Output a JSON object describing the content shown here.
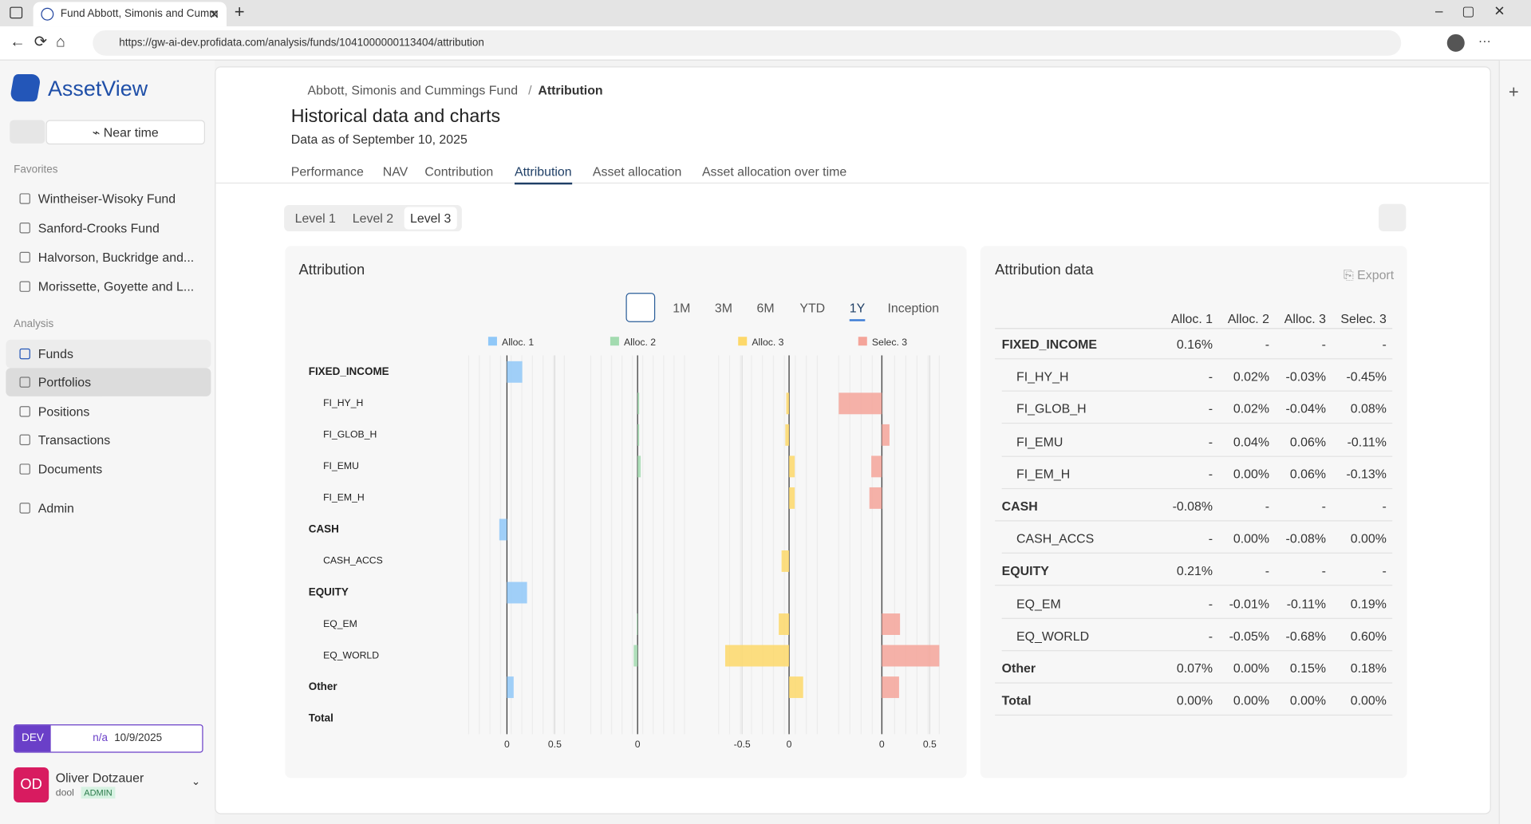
{
  "browser": {
    "tab_title": "Fund Abbott, Simonis and Cumm",
    "url": "https://gw-ai-dev.profidata.com/analysis/funds/1041000000113404/attribution"
  },
  "sidebar": {
    "brand": "AssetView",
    "near_time": "Near time",
    "favorites_label": "Favorites",
    "favorites": [
      "Wintheiser-Wisoky Fund",
      "Sanford-Crooks Fund",
      "Halvorson, Buckridge and...",
      "Morissette, Goyette and L..."
    ],
    "analysis_label": "Analysis",
    "nav": [
      "Funds",
      "Portfolios",
      "Positions",
      "Transactions",
      "Documents"
    ],
    "admin": "Admin",
    "env": "DEV",
    "env_status": "n/a",
    "env_date": "10/9/2025",
    "user": {
      "initials": "OD",
      "name": "Oliver Dotzauer",
      "login": "dool",
      "role": "ADMIN"
    }
  },
  "header": {
    "breadcrumb": [
      "Abbott, Simonis and Cummings Fund",
      "Attribution"
    ],
    "title": "Historical data and charts",
    "subtitle": "Data as of September 10, 2025",
    "tabs": [
      "Performance",
      "NAV",
      "Contribution",
      "Attribution",
      "Asset allocation",
      "Asset allocation over time"
    ]
  },
  "levels": [
    "Level 1",
    "Level 2",
    "Level 3"
  ],
  "chart_data": {
    "type": "bar",
    "orientation": "horizontal",
    "title": "Attribution",
    "periods": [
      "1M",
      "3M",
      "6M",
      "YTD",
      "1Y",
      "Inception"
    ],
    "categories": [
      "FIXED_INCOME",
      "FI_HY_H",
      "FI_GLOB_H",
      "FI_EMU",
      "FI_EM_H",
      "CASH",
      "CASH_ACCS",
      "EQUITY",
      "EQ_EM",
      "EQ_WORLD",
      "Other",
      "Total"
    ],
    "indent": [
      0,
      1,
      1,
      1,
      1,
      0,
      1,
      0,
      1,
      1,
      0,
      0
    ],
    "series": [
      {
        "name": "Alloc. 1",
        "color": "#90c8f8",
        "xlim": [
          -0.4,
          0.6
        ],
        "xticks": [
          0,
          0.5
        ],
        "values": [
          0.16,
          null,
          null,
          null,
          null,
          -0.08,
          null,
          0.21,
          null,
          null,
          0.07,
          0
        ]
      },
      {
        "name": "Alloc. 2",
        "color": "#a3dbb0",
        "xlim": [
          -0.6,
          0.6
        ],
        "xticks": [
          0
        ],
        "values": [
          null,
          0.02,
          0.02,
          0.04,
          0,
          null,
          0,
          null,
          -0.01,
          -0.05,
          0,
          0
        ]
      },
      {
        "name": "Alloc. 3",
        "color": "#fdd86a",
        "xlim": [
          -0.75,
          0.3
        ],
        "xticks": [
          -0.5,
          0
        ],
        "values": [
          null,
          -0.03,
          -0.04,
          0.06,
          0.06,
          null,
          -0.08,
          null,
          -0.11,
          -0.68,
          0.15,
          0
        ]
      },
      {
        "name": "Selec. 3",
        "color": "#f4a49a",
        "xlim": [
          -0.45,
          0.6
        ],
        "xticks": [
          0,
          0.5
        ],
        "values": [
          null,
          -0.45,
          0.08,
          -0.11,
          -0.13,
          null,
          0,
          null,
          0.19,
          0.6,
          0.18,
          0
        ]
      }
    ]
  },
  "table": {
    "title": "Attribution data",
    "export": "Export",
    "columns": [
      "Alloc. 1",
      "Alloc. 2",
      "Alloc. 3",
      "Selec. 3"
    ],
    "rows": [
      [
        "FIXED_INCOME",
        "0.16%",
        "-",
        "-",
        "-"
      ],
      [
        "FI_HY_H",
        "-",
        "0.02%",
        "-0.03%",
        "-0.45%"
      ],
      [
        "FI_GLOB_H",
        "-",
        "0.02%",
        "-0.04%",
        "0.08%"
      ],
      [
        "FI_EMU",
        "-",
        "0.04%",
        "0.06%",
        "-0.11%"
      ],
      [
        "FI_EM_H",
        "-",
        "0.00%",
        "0.06%",
        "-0.13%"
      ],
      [
        "CASH",
        "-0.08%",
        "-",
        "-",
        "-"
      ],
      [
        "CASH_ACCS",
        "-",
        "0.00%",
        "-0.08%",
        "0.00%"
      ],
      [
        "EQUITY",
        "0.21%",
        "-",
        "-",
        "-"
      ],
      [
        "EQ_EM",
        "-",
        "-0.01%",
        "-0.11%",
        "0.19%"
      ],
      [
        "EQ_WORLD",
        "-",
        "-0.05%",
        "-0.68%",
        "0.60%"
      ],
      [
        "Other",
        "0.07%",
        "0.00%",
        "0.15%",
        "0.18%"
      ],
      [
        "Total",
        "0.00%",
        "0.00%",
        "0.00%",
        "0.00%"
      ]
    ]
  }
}
